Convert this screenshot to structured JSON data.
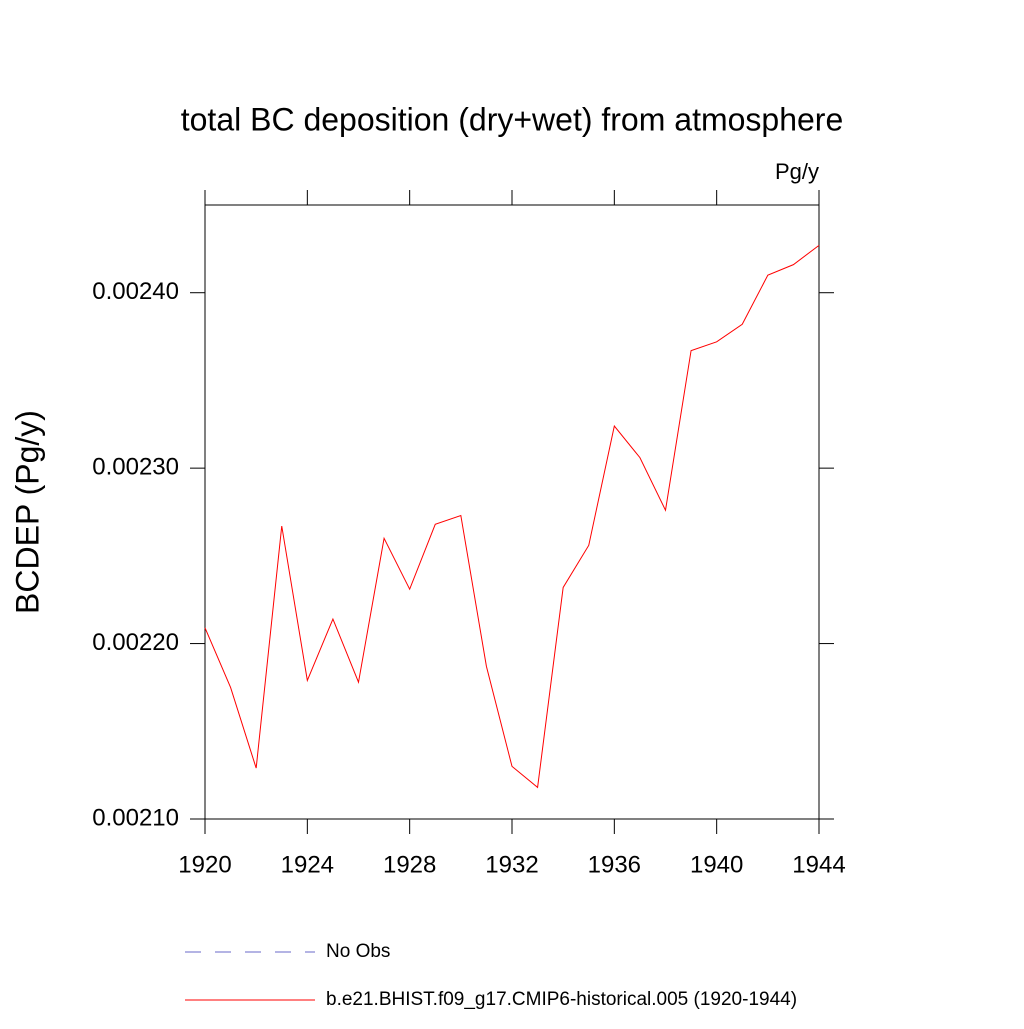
{
  "chart_data": {
    "type": "line",
    "title": "total BC deposition (dry+wet) from atmosphere",
    "units": "Pg/y",
    "ylabel": "BCDEP  (Pg/y)",
    "x": [
      1920,
      1921,
      1922,
      1923,
      1924,
      1925,
      1926,
      1927,
      1928,
      1929,
      1930,
      1931,
      1932,
      1933,
      1934,
      1935,
      1936,
      1937,
      1938,
      1939,
      1940,
      1941,
      1942,
      1943,
      1944
    ],
    "series": [
      {
        "name": "No Obs",
        "color": "#6a6ac8",
        "dashed": true,
        "values": [
          null,
          null,
          null,
          null,
          null,
          null,
          null,
          null,
          null,
          null,
          null,
          null,
          null,
          null,
          null,
          null,
          null,
          null,
          null,
          null,
          null,
          null,
          null,
          null,
          null
        ]
      },
      {
        "name": "b.e21.BHIST.f09_g17.CMIP6-historical.005 (1920-1944)",
        "color": "#ff0000",
        "dashed": false,
        "values": [
          0.002209,
          0.002175,
          0.002129,
          0.002267,
          0.002179,
          0.002214,
          0.002178,
          0.00226,
          0.002231,
          0.002268,
          0.002273,
          0.002187,
          0.00213,
          0.002118,
          0.002232,
          0.002256,
          0.002324,
          0.002306,
          0.002276,
          0.002367,
          0.002372,
          0.002382,
          0.00241,
          0.002416,
          0.002427
        ]
      }
    ],
    "xlim": [
      1920,
      1944
    ],
    "xticks": [
      1920,
      1924,
      1928,
      1932,
      1936,
      1940,
      1944
    ],
    "ylim": [
      0.0021,
      0.00245
    ],
    "yticks": [
      {
        "value": 0.0021,
        "label": "0.00210"
      },
      {
        "value": 0.0022,
        "label": "0.00220"
      },
      {
        "value": 0.0023,
        "label": "0.00230"
      },
      {
        "value": 0.0024,
        "label": "0.00240"
      }
    ]
  }
}
